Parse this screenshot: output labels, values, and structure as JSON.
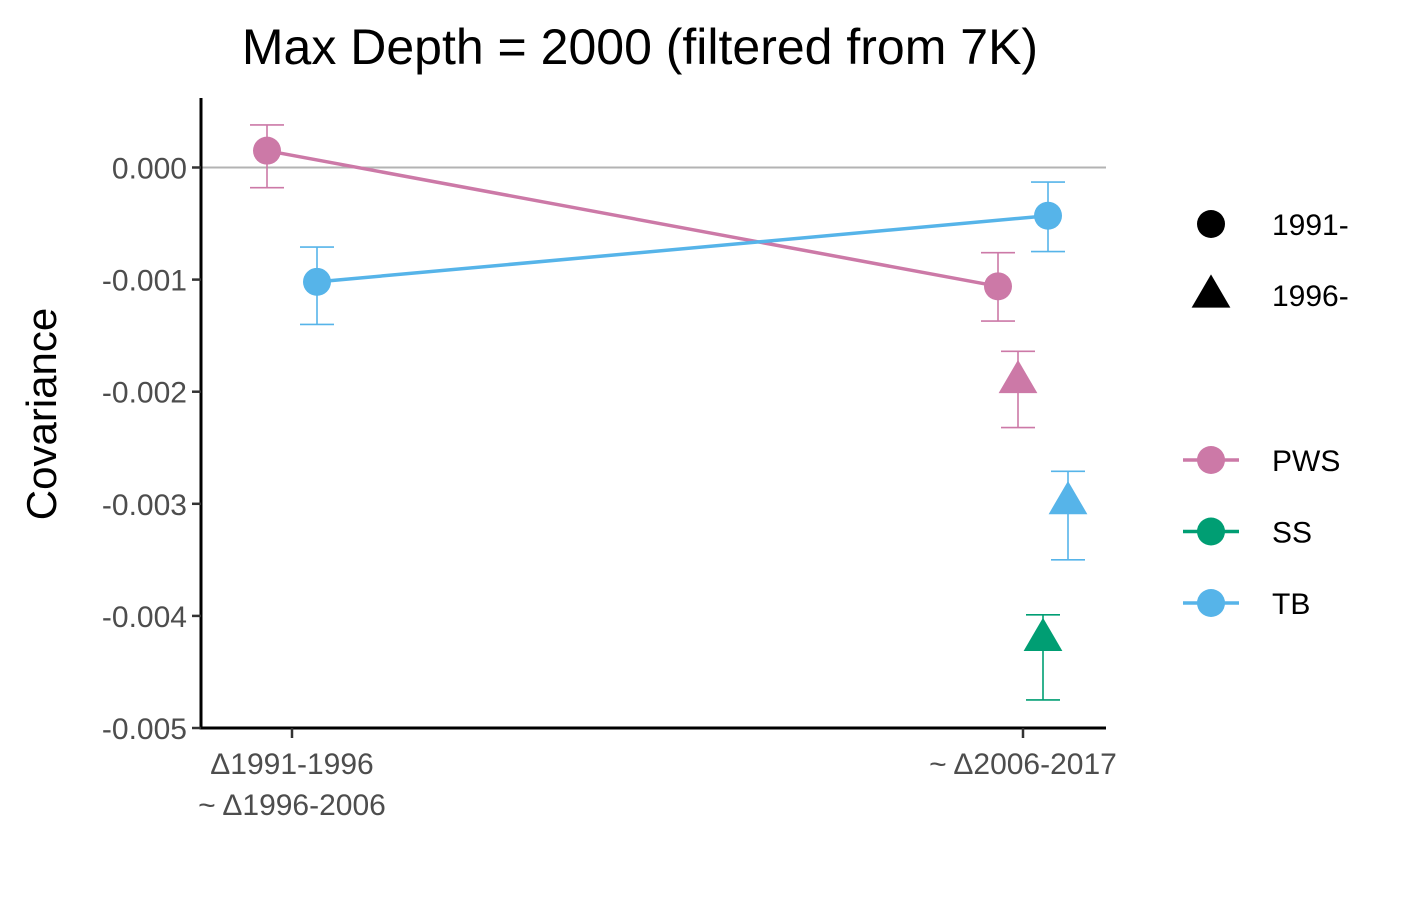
{
  "chart_data": {
    "type": "scatter",
    "title": "Max Depth = 2000 (filtered from 7K)",
    "ylabel": "Covariance",
    "xlabel": "",
    "categories": [
      [
        "Δ1991-1996",
        "~ Δ1996-2006"
      ],
      [
        "~ Δ2006-2017"
      ]
    ],
    "y_ticks": [
      "0.000",
      "-0.001",
      "-0.002",
      "-0.003",
      "-0.004",
      "-0.005"
    ],
    "y_tick_values": [
      0,
      -0.001,
      -0.002,
      -0.003,
      -0.004,
      -0.005
    ],
    "ylim": [
      -0.005,
      0.0006
    ],
    "reference_line": 0,
    "grid": false,
    "shape_legend": [
      {
        "label": "1991-",
        "shape": "circle"
      },
      {
        "label": "1996-",
        "shape": "triangle"
      }
    ],
    "series": [
      {
        "name": "PWS",
        "color": "#CC79A7",
        "points": [
          {
            "cat": 0,
            "shape": "circle",
            "y": 0.00015,
            "low": -0.00018,
            "high": 0.00038
          },
          {
            "cat": 1,
            "shape": "circle",
            "y": -0.00106,
            "low": -0.00137,
            "high": -0.00076
          },
          {
            "cat": 1,
            "shape": "triangle",
            "y": -0.0019,
            "low": -0.00232,
            "high": -0.00164
          }
        ],
        "line_shape": "circle"
      },
      {
        "name": "SS",
        "color": "#009E73",
        "points": [
          {
            "cat": 1,
            "shape": "triangle",
            "y": -0.0042,
            "low": -0.00475,
            "high": -0.00399
          }
        ],
        "line_shape": "circle"
      },
      {
        "name": "TB",
        "color": "#56B4E9",
        "points": [
          {
            "cat": 0,
            "shape": "circle",
            "y": -0.00102,
            "low": -0.0014,
            "high": -0.00071
          },
          {
            "cat": 1,
            "shape": "circle",
            "y": -0.00043,
            "low": -0.00075,
            "high": -0.00013
          },
          {
            "cat": 1,
            "shape": "triangle",
            "y": -0.00298,
            "low": -0.0035,
            "high": -0.00271
          }
        ],
        "line_shape": "circle"
      }
    ],
    "legend_placement": "right"
  }
}
